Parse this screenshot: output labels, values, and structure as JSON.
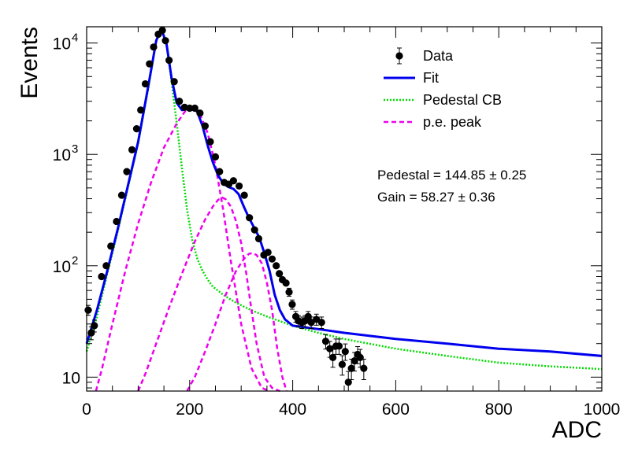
{
  "chart_data": {
    "type": "scatter",
    "title": "",
    "xlabel": "ADC",
    "ylabel": "Events",
    "xlim": [
      0,
      1000
    ],
    "ylim": [
      7.5,
      14000
    ],
    "yscale": "log",
    "grid": false,
    "legend_position": "top-right",
    "x_ticks": [
      0,
      200,
      400,
      600,
      800,
      1000
    ],
    "x_tick_labels": [
      "0",
      "200",
      "400",
      "600",
      "800",
      "1000"
    ],
    "y_ticks": [
      10,
      100,
      1000,
      10000
    ],
    "y_tick_labels": [
      "10",
      "10",
      "10",
      "10"
    ],
    "y_tick_exponents": [
      "",
      "2",
      "3",
      "4"
    ],
    "legend": [
      {
        "label": "Data",
        "style": "marker",
        "color": "#000000"
      },
      {
        "label": "Fit",
        "style": "solid",
        "color": "#0000ee"
      },
      {
        "label": "Pedestal CB",
        "style": "dotted",
        "color": "#00dd00"
      },
      {
        "label": "p.e. peak",
        "style": "dashed",
        "color": "#ee00ee"
      }
    ],
    "annotations": [
      "Pedestal = 144.85 ± 0.25",
      "Gain = 58.27 ± 0.36"
    ],
    "series": [
      {
        "name": "Data",
        "kind": "points",
        "color": "#000000",
        "x": [
          5,
          10,
          15,
          20,
          25,
          30,
          35,
          40,
          45,
          50,
          55,
          60,
          65,
          70,
          75,
          80,
          85,
          90,
          95,
          100,
          105,
          110,
          115,
          120,
          125,
          130,
          135,
          140,
          145,
          150,
          155,
          160,
          165,
          170,
          175,
          180,
          185,
          190,
          195,
          200,
          205,
          210,
          215,
          220,
          225,
          230,
          235,
          240,
          245,
          250,
          255,
          260,
          265,
          270,
          275,
          280,
          285,
          290,
          295,
          300,
          305,
          310,
          315,
          320,
          325,
          330,
          335,
          340,
          345,
          350,
          355,
          360,
          365,
          370,
          375,
          380,
          385,
          390,
          395,
          400,
          405,
          410,
          415,
          420,
          425,
          430,
          435,
          440,
          445,
          450,
          455,
          460,
          465,
          470,
          475,
          480,
          485,
          490,
          495,
          500,
          505,
          510,
          515,
          520,
          525,
          530,
          535,
          540
        ],
        "y": [
          40,
          25,
          29,
          40,
          80,
          100,
          150,
          250,
          270,
          430,
          500,
          700,
          900,
          1100,
          1500,
          1950,
          2500,
          3200,
          4300,
          5400,
          6500,
          7800,
          9200,
          10500,
          12000,
          13000,
          12500,
          11800,
          9000,
          6500,
          4500,
          3500,
          2900,
          2650,
          2600,
          2600,
          2550,
          2450,
          2300,
          2000,
          1700,
          1450,
          1200,
          1000,
          850,
          720,
          640,
          580,
          550,
          560,
          560,
          540,
          520,
          500,
          480,
          480,
          460,
          430,
          400,
          350,
          300,
          260,
          220,
          190,
          170,
          155,
          140,
          128,
          118,
          110,
          100,
          90,
          75,
          60,
          50,
          42,
          35,
          32,
          31,
          32,
          31,
          33,
          31,
          31,
          30,
          28,
          24,
          21,
          19,
          17,
          17,
          16,
          15,
          14,
          13,
          16,
          14,
          13,
          12,
          12,
          11,
          12,
          13,
          15,
          16,
          14,
          12,
          13
        ],
        "points": [
          {
            "x": 3,
            "y": 40
          },
          {
            "x": 9,
            "y": 25
          },
          {
            "x": 15,
            "y": 29
          },
          {
            "x": 29,
            "y": 80
          },
          {
            "x": 38,
            "y": 100
          },
          {
            "x": 47,
            "y": 150
          },
          {
            "x": 58,
            "y": 250
          },
          {
            "x": 68,
            "y": 430
          },
          {
            "x": 78,
            "y": 700
          },
          {
            "x": 88,
            "y": 1100
          },
          {
            "x": 97,
            "y": 1700
          },
          {
            "x": 105,
            "y": 2500
          },
          {
            "x": 114,
            "y": 4300
          },
          {
            "x": 122,
            "y": 6500
          },
          {
            "x": 130,
            "y": 9200
          },
          {
            "x": 139,
            "y": 12000
          },
          {
            "x": 147,
            "y": 13000
          },
          {
            "x": 153,
            "y": 10500
          },
          {
            "x": 160,
            "y": 7000
          },
          {
            "x": 170,
            "y": 4500
          },
          {
            "x": 180,
            "y": 3000
          },
          {
            "x": 190,
            "y": 2650
          },
          {
            "x": 200,
            "y": 2600
          },
          {
            "x": 210,
            "y": 2600
          },
          {
            "x": 220,
            "y": 2350
          },
          {
            "x": 230,
            "y": 1800
          },
          {
            "x": 240,
            "y": 1300
          },
          {
            "x": 250,
            "y": 950
          },
          {
            "x": 258,
            "y": 700
          },
          {
            "x": 267,
            "y": 560
          },
          {
            "x": 276,
            "y": 540
          },
          {
            "x": 285,
            "y": 580
          },
          {
            "x": 296,
            "y": 520
          },
          {
            "x": 306,
            "y": 430
          },
          {
            "x": 316,
            "y": 270
          },
          {
            "x": 326,
            "y": 210
          },
          {
            "x": 334,
            "y": 175
          },
          {
            "x": 344,
            "y": 125
          },
          {
            "x": 352,
            "y": 132
          },
          {
            "x": 360,
            "y": 115
          },
          {
            "x": 368,
            "y": 100
          },
          {
            "x": 374,
            "y": 85
          },
          {
            "x": 380,
            "y": 75
          },
          {
            "x": 387,
            "y": 70
          },
          {
            "x": 393,
            "y": 58
          },
          {
            "x": 399,
            "y": 45
          },
          {
            "x": 406,
            "y": 35
          },
          {
            "x": 411,
            "y": 32
          },
          {
            "x": 418,
            "y": 31
          },
          {
            "x": 424,
            "y": 32
          },
          {
            "x": 430,
            "y": 35
          },
          {
            "x": 436,
            "y": 31
          },
          {
            "x": 446,
            "y": 33
          },
          {
            "x": 456,
            "y": 31
          },
          {
            "x": 464,
            "y": 21
          },
          {
            "x": 472,
            "y": 18
          },
          {
            "x": 478,
            "y": 15
          },
          {
            "x": 484,
            "y": 19
          },
          {
            "x": 490,
            "y": 19
          },
          {
            "x": 496,
            "y": 13
          },
          {
            "x": 502,
            "y": 17
          },
          {
            "x": 508,
            "y": 9.0
          },
          {
            "x": 514,
            "y": 12
          },
          {
            "x": 520,
            "y": 14
          },
          {
            "x": 526,
            "y": 16
          },
          {
            "x": 531,
            "y": 15
          },
          {
            "x": 538,
            "y": 12
          }
        ]
      },
      {
        "name": "Fit",
        "kind": "line",
        "color": "#0000ee",
        "x": [
          0,
          20,
          40,
          60,
          80,
          100,
          120,
          135,
          145,
          155,
          165,
          175,
          185,
          195,
          205,
          215,
          225,
          235,
          245,
          255,
          265,
          275,
          285,
          295,
          305,
          315,
          325,
          335,
          345,
          355,
          365,
          375,
          385,
          400,
          450,
          500,
          600,
          700,
          800,
          900,
          1000
        ],
        "y": [
          20,
          40,
          90,
          210,
          520,
          1300,
          4200,
          10500,
          13500,
          9800,
          4800,
          2900,
          2500,
          2550,
          2650,
          2400,
          1800,
          1200,
          850,
          650,
          550,
          510,
          490,
          440,
          340,
          270,
          220,
          180,
          130,
          90,
          55,
          40,
          33,
          29,
          27,
          25,
          22,
          20,
          18,
          17,
          15.5
        ]
      },
      {
        "name": "Pedestal CB",
        "kind": "line",
        "color": "#00dd00",
        "x": [
          0,
          20,
          40,
          60,
          80,
          100,
          120,
          135,
          145,
          155,
          165,
          175,
          185,
          195,
          205,
          215,
          225,
          235,
          245,
          265,
          285,
          305,
          325,
          350,
          400,
          450,
          500,
          600,
          700,
          800,
          900,
          1000
        ],
        "y": [
          17,
          35,
          85,
          200,
          500,
          1250,
          4000,
          10300,
          13400,
          9500,
          4500,
          1900,
          750,
          320,
          170,
          115,
          90,
          75,
          65,
          55,
          48,
          43,
          39,
          35,
          29,
          25,
          22,
          18,
          15.5,
          13.5,
          12.5,
          11.8
        ]
      },
      {
        "name": "p.e. peak (1)",
        "kind": "line",
        "color": "#ee00ee",
        "x": [
          18,
          30,
          50,
          75,
          100,
          125,
          150,
          175,
          190,
          200,
          205,
          210,
          220,
          235,
          250,
          265,
          280,
          300,
          320,
          340,
          355
        ],
        "y": [
          7.5,
          12,
          30,
          90,
          240,
          560,
          1150,
          1900,
          2400,
          2650,
          2700,
          2650,
          2300,
          1550,
          800,
          320,
          110,
          30,
          12,
          8,
          7.5
        ]
      },
      {
        "name": "p.e. peak (2)",
        "kind": "line",
        "color": "#ee00ee",
        "x": [
          100,
          115,
          135,
          160,
          185,
          210,
          230,
          245,
          255,
          263,
          270,
          280,
          290,
          300,
          310,
          320,
          330,
          345,
          360,
          375
        ],
        "y": [
          7.5,
          11,
          20,
          42,
          85,
          165,
          260,
          340,
          390,
          410,
          395,
          340,
          250,
          160,
          85,
          40,
          20,
          10,
          8,
          7.5
        ]
      },
      {
        "name": "p.e. peak (3)",
        "kind": "line",
        "color": "#ee00ee",
        "x": [
          195,
          210,
          230,
          250,
          270,
          290,
          305,
          315,
          322,
          330,
          340,
          350,
          360,
          370,
          380,
          388
        ],
        "y": [
          7.5,
          10,
          17,
          30,
          55,
          90,
          115,
          128,
          130,
          125,
          105,
          70,
          40,
          18,
          10,
          7.5
        ]
      }
    ]
  }
}
